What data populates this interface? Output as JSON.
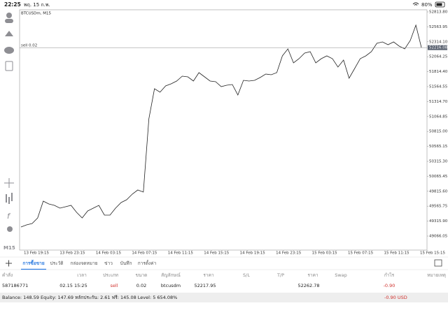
{
  "status_bar": {
    "time": "22:25",
    "date": "พฤ. 15 ก.พ.",
    "battery": "80%"
  },
  "chart_data": {
    "type": "line",
    "title": "BTCUSDm, M15",
    "timeframe": "M15",
    "order_label": "sell 0.02",
    "current_price": 52216.08,
    "color": "#222222",
    "values": [
      49218,
      49253,
      49276,
      49370,
      49650,
      49603,
      49580,
      49533,
      49556,
      49580,
      49463,
      49370,
      49486,
      49533,
      49580,
      49416,
      49416,
      49533,
      49626,
      49673,
      49767,
      49837,
      49802,
      51028,
      51530,
      51471,
      51576,
      51611,
      51658,
      51740,
      51728,
      51658,
      51798,
      51728,
      51658,
      51646,
      51565,
      51588,
      51600,
      51425,
      51670,
      51658,
      51670,
      51716,
      51775,
      51763,
      51798,
      52078,
      52195,
      51962,
      52032,
      52125,
      52148,
      51962,
      52032,
      52078,
      52032,
      51892,
      52008,
      51705,
      51868,
      52032,
      52078,
      52148,
      52288,
      52312,
      52265,
      52312,
      52242,
      52195,
      52335,
      52592,
      52218
    ],
    "ylim": [
      48832.55,
      52848.83
    ],
    "yticks": [
      {
        "value": 52813.8,
        "label": "52813.80"
      },
      52563.95,
      {
        "value": 52314.1,
        "label": "52314.10"
      },
      52064.25,
      {
        "value": 51814.4,
        "label": "51814.40"
      },
      51564.55,
      {
        "value": 51314.7,
        "label": "51314.70"
      },
      51064.85,
      {
        "value": 50815,
        "label": "50815.00"
      },
      50565.15,
      {
        "value": 50315.3,
        "label": "50315.30"
      },
      50065.45,
      {
        "value": 49815.6,
        "label": "49815.60"
      },
      49565.75,
      {
        "value": 49315.9,
        "label": "49315.90"
      },
      49066.05
    ],
    "xtick_labels": [
      "13 Feb 19:15",
      "13 Feb 23:15",
      "14 Feb 03:15",
      "14 Feb 07:15",
      "14 Feb 11:15",
      "14 Feb 15:15",
      "14 Feb 19:15",
      "14 Feb 23:15",
      "15 Feb 03:15",
      "15 Feb 07:15",
      "15 Feb 11:15",
      "15 Feb 15:15"
    ]
  },
  "tabs": [
    "การซื้อขาย",
    "ประวัติ",
    "กล่องจดหมาย",
    "ข่าว",
    "บันทึก",
    "การตั้งค่า"
  ],
  "table": {
    "headers": [
      "คำสั่ง",
      "เวลา",
      "ประเภท",
      "ขนาด",
      "สัญลักษณ์",
      "ราคา",
      "S/L",
      "T/P",
      "ราคา",
      "Swap",
      "กำไร",
      "หมายเหตุ"
    ],
    "rows": [
      {
        "order": "587186771",
        "time": "02.15 15:25",
        "type": "sell",
        "volume": "0.02",
        "symbol": "btcusdm",
        "open_price": "52217.95",
        "current_price": "52262.78",
        "profit": "-0.90"
      }
    ]
  },
  "summary": {
    "text": "Balance: 148.59 Equity: 147.69 หลักประกัน: 2.61 ฟรี: 145.08 Level: 5 654.08%",
    "total": "-0.90  USD"
  }
}
